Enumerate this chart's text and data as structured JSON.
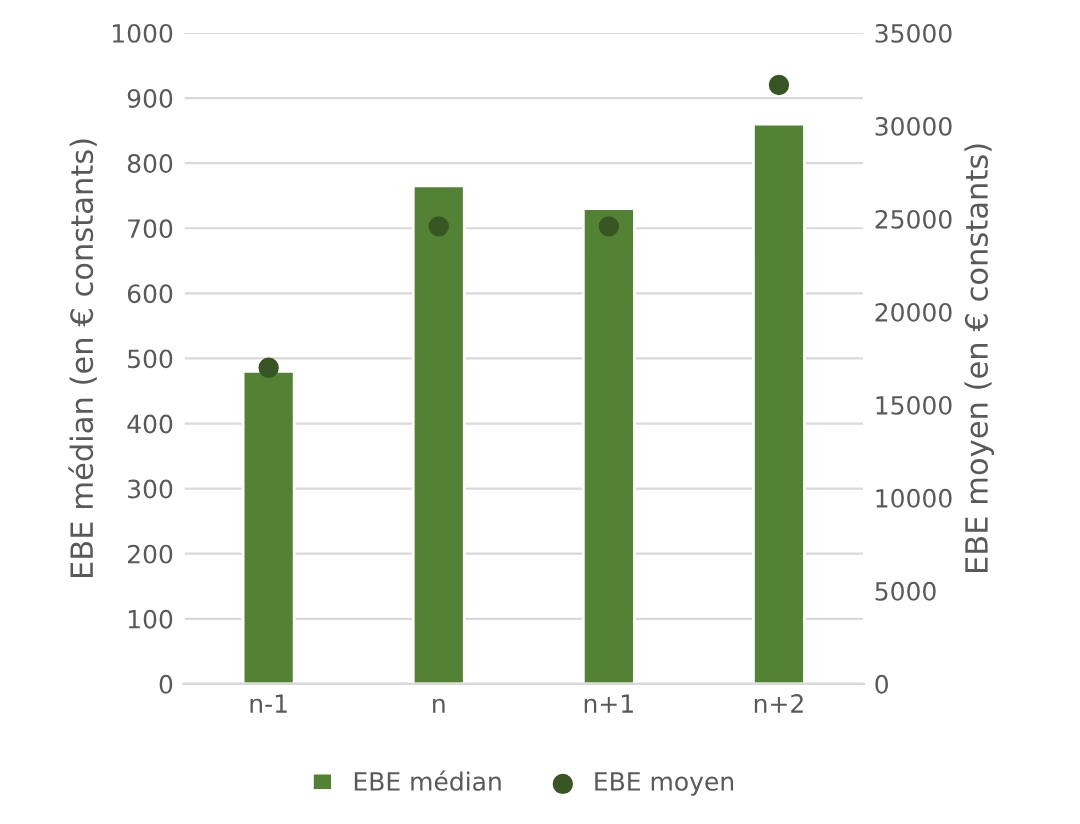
{
  "chart_data": {
    "type": "bar",
    "categories": [
      "n-1",
      "n",
      "n+1",
      "n+2"
    ],
    "series": [
      {
        "name": "EBE médian",
        "color": "#548235",
        "values": [
          480,
          765,
          730,
          860
        ]
      },
      {
        "name": "EBE moyen",
        "type": "scatter",
        "axis": "y2",
        "color": "#375623",
        "values": [
          17000,
          24600,
          24600,
          32200
        ]
      }
    ],
    "ylabel": "EBE médian (en € constants)",
    "y2label": "EBE moyen (en € constants)",
    "ylim": [
      0,
      1000
    ],
    "yticks": [
      0,
      100,
      200,
      300,
      400,
      500,
      600,
      700,
      800,
      900,
      1000
    ],
    "y2lim": [
      0,
      35000
    ],
    "y2ticks": [
      0,
      5000,
      10000,
      15000,
      20000,
      25000,
      30000,
      35000
    ],
    "grid": "y",
    "legend": "bottom",
    "marker": "circle"
  }
}
